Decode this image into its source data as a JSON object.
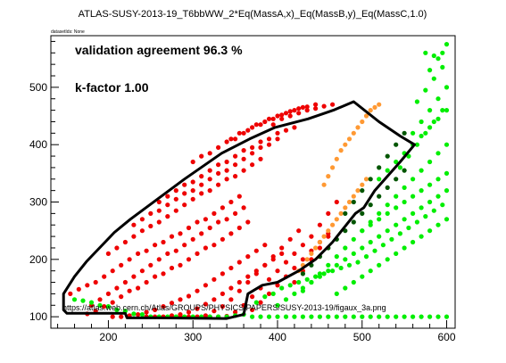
{
  "chart_data": {
    "type": "scatter",
    "title": "ATLAS-SUSY-2013-19_T6bbWW_2*Eq(MassA,x)_Eq(MassB,y)_Eq(MassC,1.0)",
    "dataset_info": "datasetIds: None",
    "annotations": [
      "validation agreement 96.3 %",
      "k-factor 1.00"
    ],
    "source_url": "https://atlas.web.cern.ch/Atlas/GROUPS/PHYSICS/PAPERS/SUSY-2013-19/figaux_3a.png",
    "xlabel": "",
    "ylabel": "",
    "xlim": [
      132,
      610
    ],
    "ylim": [
      80,
      590
    ],
    "xticks": [
      200,
      300,
      400,
      500,
      600
    ],
    "yticks": [
      100,
      200,
      300,
      400,
      500
    ],
    "colors": {
      "excluded_agree": "#ee0000",
      "allowed_agree": "#00ee00",
      "excluded_official_only": "#ff9933",
      "allowed_official_only": "#005500",
      "contour": "#000000"
    },
    "official_contour": [
      [
        147,
        140
      ],
      [
        147,
        112
      ],
      [
        151,
        106
      ],
      [
        220,
        106
      ],
      [
        222,
        98
      ],
      [
        260,
        98
      ],
      [
        340,
        97
      ],
      [
        360,
        104
      ],
      [
        365,
        140
      ],
      [
        382,
        155
      ],
      [
        400,
        160
      ],
      [
        425,
        180
      ],
      [
        445,
        200
      ],
      [
        465,
        230
      ],
      [
        492,
        280
      ],
      [
        502,
        290
      ],
      [
        515,
        320
      ],
      [
        545,
        370
      ],
      [
        562,
        400
      ],
      [
        545,
        415
      ],
      [
        520,
        440
      ],
      [
        490,
        475
      ],
      [
        466,
        460
      ],
      [
        436,
        445
      ],
      [
        397,
        430
      ],
      [
        367,
        410
      ],
      [
        334,
        385
      ],
      [
        290,
        340
      ],
      [
        226,
        270
      ],
      [
        207,
        247
      ],
      [
        174,
        196
      ],
      [
        160,
        170
      ],
      [
        147,
        140
      ]
    ],
    "series": [
      {
        "name": "excluded_agree",
        "x": [
          155,
          165,
          175,
          185,
          195,
          205,
          215,
          225,
          235,
          245,
          255,
          265,
          275,
          285,
          295,
          305,
          315,
          325,
          335,
          345,
          355,
          180,
          190,
          200,
          210,
          220,
          230,
          240,
          250,
          260,
          270,
          280,
          290,
          300,
          310,
          320,
          330,
          340,
          350,
          360,
          175,
          185,
          195,
          205,
          215,
          225,
          235,
          245,
          255,
          265,
          275,
          285,
          295,
          305,
          315,
          325,
          335,
          345,
          355,
          365,
          200,
          210,
          220,
          230,
          240,
          250,
          260,
          270,
          280,
          290,
          300,
          310,
          320,
          330,
          340,
          350,
          360,
          370,
          380,
          205,
          215,
          225,
          235,
          245,
          255,
          265,
          275,
          285,
          295,
          305,
          315,
          325,
          335,
          345,
          355,
          365,
          375,
          385,
          230,
          240,
          250,
          260,
          270,
          280,
          290,
          300,
          310,
          320,
          330,
          340,
          350,
          360,
          370,
          380,
          390,
          400,
          245,
          255,
          265,
          275,
          285,
          295,
          305,
          315,
          325,
          335,
          345,
          355,
          365,
          375,
          385,
          395,
          405,
          260,
          270,
          280,
          290,
          300,
          310,
          320,
          330,
          340,
          350,
          360,
          370,
          380,
          390,
          400,
          410,
          420,
          275,
          285,
          295,
          305,
          315,
          325,
          335,
          345,
          355,
          365,
          375,
          385,
          395,
          405,
          415,
          425,
          300,
          310,
          320,
          330,
          340,
          350,
          360,
          370,
          380,
          390,
          400,
          410,
          420,
          430,
          320,
          330,
          340,
          350,
          360,
          370,
          380,
          390,
          400,
          410,
          420,
          430,
          440,
          345,
          355,
          365,
          375,
          385,
          395,
          405,
          415,
          425,
          435,
          445,
          370,
          380,
          390,
          400,
          410,
          420,
          430,
          440,
          450,
          460,
          395,
          405,
          415,
          425,
          435,
          445,
          455,
          465,
          420,
          430,
          440,
          450,
          460,
          450,
          460,
          470
        ],
        "y": [
          140,
          148,
          155,
          160,
          170,
          180,
          190,
          200,
          210,
          215,
          225,
          230,
          240,
          245,
          255,
          265,
          270,
          280,
          290,
          300,
          310,
          120,
          130,
          140,
          150,
          160,
          170,
          180,
          190,
          200,
          210,
          215,
          225,
          235,
          245,
          255,
          265,
          270,
          280,
          290,
          105,
          110,
          118,
          125,
          135,
          145,
          150,
          160,
          170,
          175,
          185,
          190,
          200,
          210,
          220,
          225,
          235,
          245,
          255,
          265,
          210,
          220,
          230,
          240,
          250,
          258,
          265,
          275,
          285,
          295,
          305,
          315,
          320,
          330,
          340,
          345,
          355,
          365,
          375,
          100,
          100,
          102,
          104,
          108,
          112,
          118,
          124,
          130,
          136,
          145,
          155,
          165,
          175,
          185,
          195,
          205,
          215,
          225,
          260,
          270,
          280,
          285,
          295,
          305,
          315,
          320,
          330,
          340,
          350,
          355,
          365,
          375,
          385,
          395,
          400,
          410,
          100,
          100,
          100,
          102,
          104,
          108,
          114,
          122,
          130,
          140,
          150,
          160,
          170,
          180,
          190,
          200,
          210,
          300,
          310,
          320,
          330,
          335,
          345,
          355,
          365,
          370,
          380,
          390,
          395,
          405,
          410,
          420,
          425,
          430,
          100,
          100,
          100,
          100,
          102,
          110,
          118,
          130,
          145,
          160,
          175,
          190,
          205,
          220,
          235,
          250,
          370,
          380,
          385,
          395,
          405,
          410,
          420,
          430,
          435,
          445,
          450,
          455,
          460,
          465,
          100,
          100,
          101,
          108,
          120,
          135,
          150,
          165,
          180,
          195,
          210,
          225,
          240,
          410,
          420,
          425,
          435,
          440,
          445,
          452,
          458,
          463,
          466,
          470,
          112,
          125,
          140,
          155,
          170,
          185,
          200,
          215,
          230,
          245,
          435,
          445,
          450,
          455,
          460,
          463,
          467,
          470,
          160,
          180,
          200,
          220,
          240,
          260,
          280,
          300
        ]
      },
      {
        "name": "excluded_official_only",
        "x": [
          425,
          430,
          435,
          440,
          445,
          450,
          455,
          460,
          465,
          470,
          475,
          480,
          485,
          490,
          495,
          500,
          505,
          455,
          460,
          465,
          470,
          475,
          480,
          485,
          490,
          495,
          500,
          505,
          510,
          515,
          520
        ],
        "y": [
          180,
          190,
          200,
          210,
          220,
          230,
          240,
          250,
          260,
          270,
          280,
          290,
          300,
          310,
          320,
          330,
          340,
          330,
          345,
          360,
          375,
          390,
          400,
          410,
          420,
          430,
          440,
          450,
          460,
          465,
          470
        ]
      },
      {
        "name": "allowed_official_only",
        "x": [
          430,
          440,
          450,
          460,
          470,
          480,
          490,
          500,
          510,
          520,
          530,
          540,
          550,
          480,
          490,
          500,
          510,
          520,
          530,
          540,
          550
        ],
        "y": [
          175,
          190,
          205,
          220,
          235,
          250,
          265,
          280,
          295,
          310,
          325,
          340,
          355,
          280,
          300,
          320,
          340,
          360,
          380,
          400,
          420
        ]
      },
      {
        "name": "allowed_agree",
        "x": [
          160,
          170,
          180,
          190,
          200,
          210,
          220,
          230,
          240,
          250,
          260,
          270,
          280,
          290,
          300,
          310,
          320,
          330,
          340,
          350,
          360,
          370,
          380,
          390,
          400,
          410,
          420,
          430,
          440,
          450,
          460,
          470,
          480,
          490,
          500,
          510,
          520,
          530,
          540,
          550,
          560,
          570,
          580,
          590,
          600,
          375,
          385,
          395,
          405,
          415,
          425,
          435,
          445,
          455,
          465,
          475,
          485,
          495,
          505,
          515,
          525,
          535,
          545,
          555,
          565,
          575,
          585,
          595,
          400,
          410,
          420,
          430,
          440,
          450,
          460,
          470,
          480,
          490,
          500,
          510,
          520,
          530,
          540,
          550,
          560,
          570,
          580,
          590,
          600,
          430,
          440,
          450,
          460,
          470,
          480,
          490,
          500,
          510,
          520,
          530,
          540,
          550,
          560,
          570,
          580,
          590,
          600,
          470,
          480,
          490,
          500,
          510,
          520,
          530,
          540,
          550,
          560,
          570,
          580,
          590,
          600,
          500,
          510,
          520,
          530,
          540,
          550,
          560,
          570,
          580,
          590,
          600,
          520,
          530,
          540,
          550,
          560,
          570,
          580,
          590,
          600,
          545,
          555,
          565,
          575,
          585,
          595,
          560,
          570,
          580,
          590,
          600,
          565,
          575,
          585,
          595,
          580,
          590,
          600,
          575,
          585,
          595
        ],
        "y": [
          130,
          128,
          125,
          120,
          118,
          112,
          110,
          105,
          104,
          100,
          100,
          100,
          100,
          100,
          100,
          100,
          100,
          100,
          100,
          102,
          104,
          100,
          100,
          100,
          100,
          100,
          100,
          100,
          100,
          100,
          100,
          100,
          100,
          100,
          100,
          100,
          100,
          100,
          100,
          100,
          100,
          100,
          100,
          100,
          100,
          125,
          135,
          140,
          150,
          155,
          160,
          165,
          170,
          175,
          180,
          185,
          190,
          195,
          205,
          215,
          225,
          235,
          245,
          255,
          265,
          275,
          285,
          295,
          120,
          130,
          140,
          150,
          160,
          170,
          180,
          190,
          200,
          210,
          220,
          230,
          240,
          250,
          260,
          270,
          280,
          290,
          300,
          310,
          320,
          145,
          160,
          175,
          190,
          205,
          220,
          235,
          250,
          265,
          280,
          295,
          310,
          325,
          340,
          355,
          370,
          385,
          400,
          140,
          150,
          160,
          170,
          180,
          190,
          200,
          210,
          220,
          230,
          240,
          250,
          260,
          270,
          250,
          260,
          270,
          280,
          290,
          300,
          310,
          320,
          330,
          340,
          350,
          340,
          355,
          370,
          385,
          400,
          415,
          430,
          445,
          460,
          360,
          380,
          400,
          420,
          440,
          460,
          420,
          440,
          460,
          480,
          500,
          475,
          495,
          515,
          535,
          530,
          550,
          575,
          560,
          555,
          560
        ]
      }
    ]
  }
}
